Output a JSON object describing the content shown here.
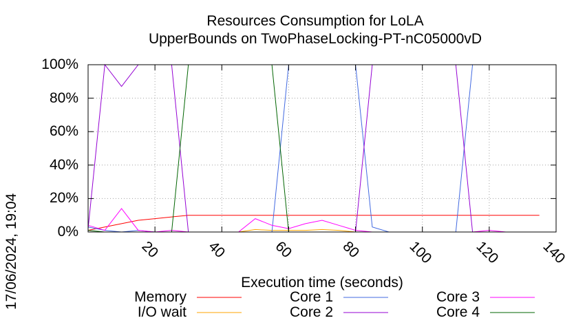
{
  "chart_data": {
    "type": "line",
    "title": "Resources Consumption for LoLA",
    "subtitle": "UpperBounds on TwoPhaseLocking-PT-nC05000vD",
    "xlabel": "Execution time (seconds)",
    "ylabel": "",
    "xlim": [
      0,
      140
    ],
    "ylim": [
      0,
      100
    ],
    "xticks": [
      "20",
      "40",
      "60",
      "80",
      "100",
      "120",
      "140"
    ],
    "yticks": [
      "0%",
      "20%",
      "40%",
      "60%",
      "80%",
      "100%"
    ],
    "grid": true,
    "legend_position": "bottom",
    "timestamp": "17/06/2024, 19:04",
    "series": [
      {
        "name": "Memory",
        "color": "#ff0000",
        "x": [
          0,
          5,
          10,
          15,
          20,
          25,
          30,
          40,
          50,
          60,
          70,
          80,
          90,
          100,
          110,
          120,
          130,
          135
        ],
        "y": [
          1,
          3,
          5,
          7,
          8,
          9,
          10,
          10,
          10,
          10,
          10,
          10,
          10,
          10,
          10,
          10,
          10,
          10
        ]
      },
      {
        "name": "I/O wait",
        "color": "#ffa500",
        "x": [
          0,
          5,
          10,
          15,
          20,
          25,
          30,
          40,
          45,
          50,
          55,
          60,
          65,
          70,
          75,
          80,
          85,
          90,
          135
        ],
        "y": [
          0,
          0,
          0,
          0,
          0,
          0,
          0,
          0,
          0,
          1.5,
          1,
          1,
          1,
          1.5,
          1,
          0,
          0,
          0,
          0
        ]
      },
      {
        "name": "Core 1",
        "color": "#4169e1",
        "x": [
          0,
          5,
          10,
          15,
          20,
          25,
          30,
          35,
          40,
          45,
          50,
          55,
          60,
          65,
          70,
          75,
          80,
          85,
          90,
          95,
          100,
          105,
          110,
          115,
          120,
          125,
          130,
          135
        ],
        "y": [
          3,
          1,
          0,
          1,
          0,
          0,
          0,
          0,
          0,
          0,
          0,
          0,
          100,
          100,
          100,
          100,
          100,
          3,
          0,
          0,
          0,
          0,
          0,
          100,
          100,
          100,
          100,
          100
        ]
      },
      {
        "name": "Core 2",
        "color": "#9400d3",
        "x": [
          0,
          5,
          10,
          15,
          20,
          25,
          30,
          35,
          40,
          45,
          50,
          55,
          60,
          65,
          70,
          75,
          80,
          85,
          90,
          95,
          100,
          105,
          110,
          115,
          120,
          125,
          130,
          135
        ],
        "y": [
          2,
          100,
          87,
          100,
          100,
          100,
          0,
          0,
          0,
          0,
          0,
          0,
          0,
          0,
          0,
          0,
          0,
          100,
          100,
          100,
          100,
          100,
          100,
          0,
          0,
          0,
          0,
          0
        ]
      },
      {
        "name": "Core 3",
        "color": "#ff00ff",
        "x": [
          0,
          5,
          10,
          15,
          20,
          25,
          30,
          35,
          40,
          45,
          50,
          55,
          60,
          65,
          70,
          75,
          80,
          85,
          90,
          95,
          100,
          105,
          110,
          115,
          120,
          125,
          130,
          135
        ],
        "y": [
          4,
          1,
          14,
          1,
          0,
          1,
          0,
          0,
          0,
          0,
          8,
          4,
          2,
          5,
          7,
          4,
          1,
          0,
          0,
          0,
          0,
          0,
          0,
          0,
          1,
          0,
          0,
          0
        ]
      },
      {
        "name": "Core 4",
        "color": "#006400",
        "x": [
          0,
          5,
          10,
          15,
          20,
          25,
          30,
          35,
          40,
          45,
          50,
          55,
          60,
          65,
          70,
          75,
          80,
          85,
          90,
          95,
          100,
          105,
          110,
          115,
          120,
          125,
          130,
          135
        ],
        "y": [
          1,
          0,
          0,
          0,
          0,
          0,
          100,
          100,
          100,
          100,
          100,
          100,
          0,
          0,
          0,
          0,
          0,
          0,
          0,
          0,
          0,
          0,
          0,
          0,
          0,
          0,
          0,
          0
        ]
      }
    ]
  }
}
